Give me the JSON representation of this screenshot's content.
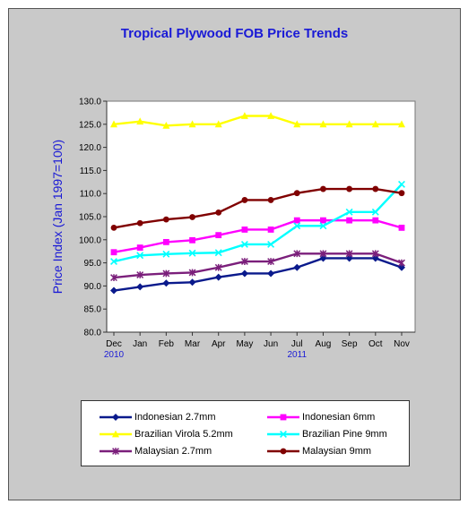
{
  "chart_data": {
    "type": "line",
    "title": "Tropical Plywood FOB Price Trends",
    "ylabel": "Price Index (Jan 1997=100)",
    "xlabel": "",
    "ylim": [
      80,
      130
    ],
    "yticks": [
      "80.0",
      "85.0",
      "90.0",
      "95.0",
      "100.0",
      "105.0",
      "110.0",
      "115.0",
      "120.0",
      "125.0",
      "130.0"
    ],
    "categories": [
      "Dec",
      "Jan",
      "Feb",
      "Mar",
      "Apr",
      "May",
      "Jun",
      "Jul",
      "Aug",
      "Sep",
      "Oct",
      "Nov"
    ],
    "year_labels": [
      {
        "label": "2010",
        "category_index": 0
      },
      {
        "label": "2011",
        "category_index": 7
      }
    ],
    "grid": false,
    "legend_position": "bottom",
    "series": [
      {
        "name": "Indonesian 2.7mm",
        "color": "#0a1a8c",
        "marker": "diamond",
        "values": [
          89.0,
          89.8,
          90.6,
          90.8,
          91.9,
          92.7,
          92.7,
          94.0,
          96.0,
          96.0,
          96.0,
          94.0
        ]
      },
      {
        "name": "Indonesian 6mm",
        "color": "#ff00ff",
        "marker": "square",
        "values": [
          97.3,
          98.3,
          99.5,
          99.9,
          101.0,
          102.2,
          102.2,
          104.2,
          104.2,
          104.2,
          104.2,
          102.6
        ]
      },
      {
        "name": "Brazilian Virola 5.2mm",
        "color": "#ffff00",
        "marker": "triangle",
        "values": [
          125.0,
          125.6,
          124.7,
          125.0,
          125.0,
          126.8,
          126.8,
          125.0,
          125.0,
          125.0,
          125.0,
          125.0
        ]
      },
      {
        "name": "Brazilian Pine 9mm",
        "color": "#00ffff",
        "marker": "x",
        "values": [
          95.3,
          96.6,
          96.9,
          97.1,
          97.2,
          99.0,
          99.0,
          103.0,
          103.0,
          106.0,
          106.0,
          112.0
        ]
      },
      {
        "name": "Malaysian 2.7mm",
        "color": "#7b1f7b",
        "marker": "star",
        "values": [
          91.8,
          92.4,
          92.7,
          92.9,
          94.0,
          95.3,
          95.3,
          97.0,
          97.0,
          97.0,
          97.0,
          95.0
        ]
      },
      {
        "name": "Malaysian 9mm",
        "color": "#800000",
        "marker": "circle",
        "values": [
          102.6,
          103.6,
          104.4,
          104.9,
          105.9,
          108.6,
          108.6,
          110.1,
          111.0,
          111.0,
          111.0,
          110.1
        ]
      }
    ]
  }
}
